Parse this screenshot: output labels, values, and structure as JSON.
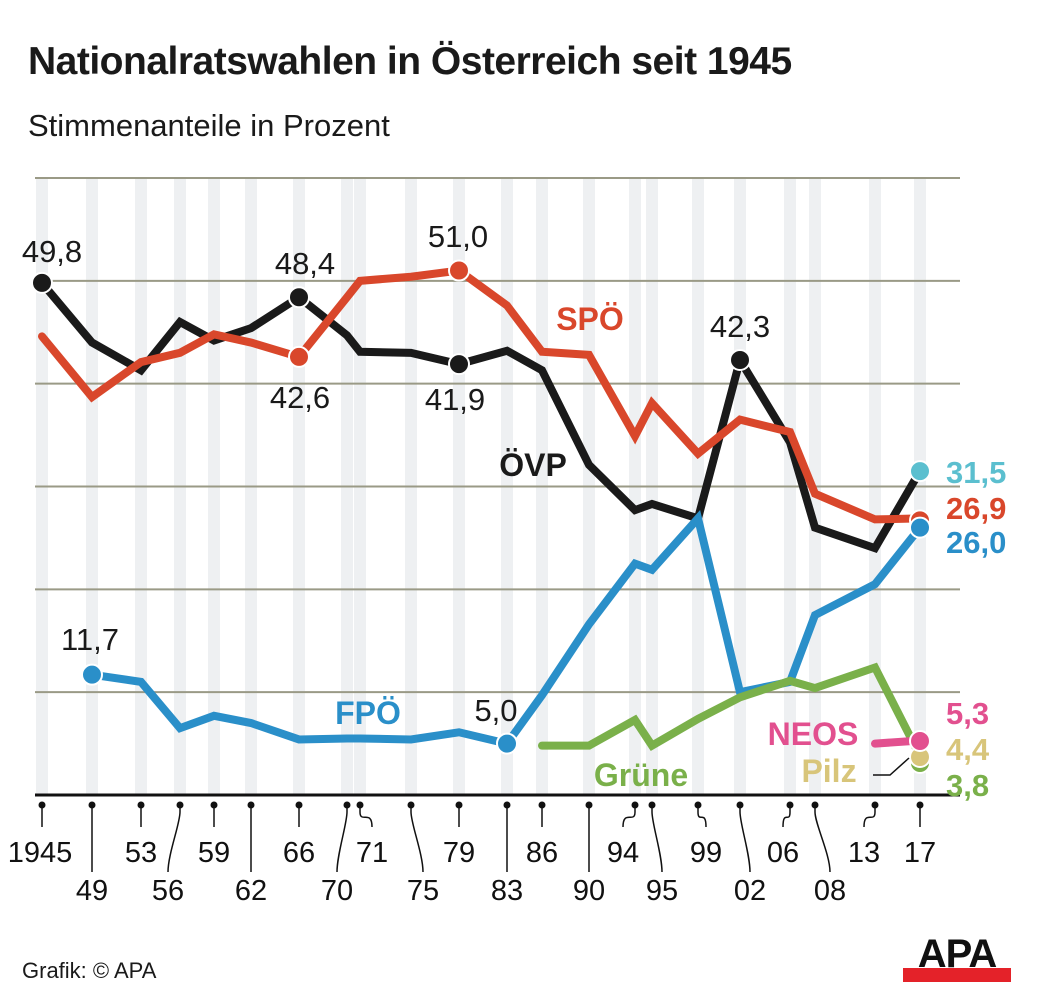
{
  "title": "Nationalratswahlen in Österreich seit 1945",
  "subtitle": "Stimmenanteile in Prozent",
  "source": "Grafik: © APA",
  "logo": "APA",
  "chart_data": {
    "type": "line",
    "title": "Nationalratswahlen in Österreich seit 1945",
    "subtitle": "Stimmenanteile in Prozent",
    "xlabel": "",
    "ylabel": "Stimmenanteile in Prozent",
    "ylim": [
      0,
      60
    ],
    "grid": true,
    "years": [
      1945,
      1949,
      1953,
      1956,
      1959,
      1962,
      1966,
      1970,
      1971,
      1975,
      1979,
      1983,
      1986,
      1990,
      1994,
      1995,
      1999,
      2002,
      2006,
      2008,
      2013,
      2017
    ],
    "tick_labels": [
      "1945",
      "49",
      "53",
      "56",
      "59",
      "62",
      "66",
      "70",
      "71",
      "75",
      "79",
      "83",
      "86",
      "90",
      "94",
      "95",
      "99",
      "02",
      "06",
      "08",
      "13",
      "17"
    ],
    "series": [
      {
        "name": "ÖVP",
        "color": "#1a1a1a",
        "label_color": "#1a1a1a",
        "x": [
          1945,
          1949,
          1953,
          1956,
          1959,
          1962,
          1966,
          1970,
          1971,
          1975,
          1979,
          1983,
          1986,
          1990,
          1994,
          1995,
          1999,
          2002,
          2006,
          2008,
          2013,
          2017
        ],
        "values": [
          49.8,
          44.0,
          41.3,
          46.0,
          44.2,
          45.4,
          48.4,
          44.7,
          43.1,
          43.0,
          41.9,
          43.2,
          41.3,
          32.1,
          27.7,
          28.3,
          26.9,
          42.3,
          34.3,
          26.0,
          24.0,
          31.5
        ]
      },
      {
        "name": "SPÖ",
        "color": "#d9472b",
        "label_color": "#d9472b",
        "x": [
          1945,
          1949,
          1953,
          1956,
          1959,
          1962,
          1966,
          1970,
          1971,
          1975,
          1979,
          1983,
          1986,
          1990,
          1994,
          1995,
          1999,
          2002,
          2006,
          2008,
          2013,
          2017
        ],
        "values": [
          44.6,
          38.7,
          42.1,
          43.0,
          44.8,
          44.0,
          42.6,
          48.4,
          50.0,
          50.4,
          51.0,
          47.6,
          43.1,
          42.8,
          34.9,
          38.1,
          33.2,
          36.5,
          35.3,
          29.3,
          26.8,
          26.9
        ]
      },
      {
        "name": "FPÖ",
        "color": "#2a8fc9",
        "label_color": "#2a8fc9",
        "x": [
          1949,
          1953,
          1956,
          1959,
          1962,
          1966,
          1970,
          1971,
          1975,
          1979,
          1983,
          1986,
          1990,
          1994,
          1995,
          1999,
          2002,
          2006,
          2008,
          2013,
          2017
        ],
        "values": [
          11.7,
          11.0,
          6.5,
          7.7,
          7.0,
          5.4,
          5.5,
          5.5,
          5.4,
          6.1,
          5.0,
          9.7,
          16.6,
          22.5,
          21.9,
          26.9,
          10.0,
          11.0,
          17.5,
          20.5,
          26.0
        ]
      },
      {
        "name": "Grüne",
        "color": "#7ab04a",
        "label_color": "#7ab04a",
        "x": [
          1986,
          1990,
          1994,
          1995,
          1999,
          2002,
          2006,
          2008,
          2013,
          2017
        ],
        "values": [
          4.8,
          4.8,
          7.3,
          4.8,
          7.4,
          9.5,
          11.1,
          10.4,
          12.4,
          3.8
        ]
      },
      {
        "name": "NEOS",
        "color": "#e2508f",
        "label_color": "#e2508f",
        "x": [
          2013,
          2017
        ],
        "values": [
          5.0,
          5.3
        ]
      },
      {
        "name": "Pilz",
        "color": "#d8c57a",
        "label_color": "#d8c57a",
        "x": [
          2017
        ],
        "values": [
          4.4
        ]
      }
    ],
    "annotations": [
      {
        "text": "49,8",
        "series": "ÖVP",
        "year": 1945,
        "value": 49.8
      },
      {
        "text": "48,4",
        "series": "ÖVP",
        "year": 1966,
        "value": 48.4
      },
      {
        "text": "41,9",
        "series": "ÖVP",
        "year": 1979,
        "value": 41.9
      },
      {
        "text": "42,3",
        "series": "ÖVP",
        "year": 2002,
        "value": 42.3
      },
      {
        "text": "42,6",
        "series": "SPÖ",
        "year": 1966,
        "value": 42.6
      },
      {
        "text": "51,0",
        "series": "SPÖ",
        "year": 1979,
        "value": 51.0
      },
      {
        "text": "11,7",
        "series": "FPÖ",
        "year": 1949,
        "value": 11.7
      },
      {
        "text": "5,0",
        "series": "FPÖ",
        "year": 1983,
        "value": 5.0
      }
    ],
    "end_labels": [
      {
        "series": "ÖVP",
        "text": "31,5",
        "color": "#5bbfcf"
      },
      {
        "series": "SPÖ",
        "text": "26,9",
        "color": "#d9472b"
      },
      {
        "series": "FPÖ",
        "text": "26,0",
        "color": "#2a8fc9"
      },
      {
        "series": "NEOS",
        "text": "5,3",
        "color": "#e2508f"
      },
      {
        "series": "Pilz",
        "text": "4,4",
        "color": "#d8c57a"
      },
      {
        "series": "Grüne",
        "text": "3,8",
        "color": "#7ab04a"
      }
    ],
    "series_labels": [
      {
        "text": "SPÖ",
        "color": "#d9472b"
      },
      {
        "text": "ÖVP",
        "color": "#1a1a1a"
      },
      {
        "text": "FPÖ",
        "color": "#2a8fc9"
      },
      {
        "text": "Grüne",
        "color": "#7ab04a"
      },
      {
        "text": "NEOS",
        "color": "#e2508f"
      },
      {
        "text": "Pilz",
        "color": "#d8c57a"
      }
    ]
  }
}
